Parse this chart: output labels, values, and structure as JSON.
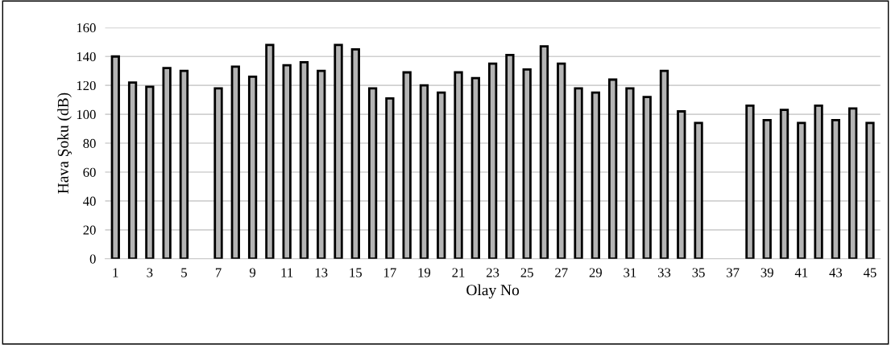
{
  "chart_data": {
    "type": "bar",
    "xlabel": "Olay No",
    "ylabel": "Hava Şoku (dB)",
    "categories": [
      "1",
      null,
      "3",
      null,
      "5",
      null,
      "7",
      null,
      "9",
      null,
      "11",
      null,
      "13",
      null,
      "15",
      null,
      "17",
      null,
      "19",
      null,
      "21",
      null,
      "23",
      null,
      "25",
      null,
      "27",
      null,
      "29",
      null,
      "31",
      null,
      "33",
      null,
      "35",
      null,
      "37",
      null,
      "39",
      null,
      "41",
      null,
      "43",
      null,
      "45"
    ],
    "values": [
      140,
      122,
      119,
      132,
      130,
      null,
      118,
      133,
      126,
      148,
      134,
      136,
      130,
      148,
      145,
      118,
      111,
      129,
      120,
      115,
      129,
      125,
      135,
      141,
      131,
      147,
      135,
      118,
      115,
      124,
      118,
      112,
      130,
      102,
      94,
      null,
      null,
      106,
      96,
      103,
      94,
      106,
      96,
      104,
      94
    ],
    "color": "#b4b4b4",
    "ylim": [
      0,
      160
    ],
    "yticks": [
      0,
      20,
      40,
      60,
      80,
      100,
      120,
      140,
      160
    ],
    "grid": "y"
  }
}
